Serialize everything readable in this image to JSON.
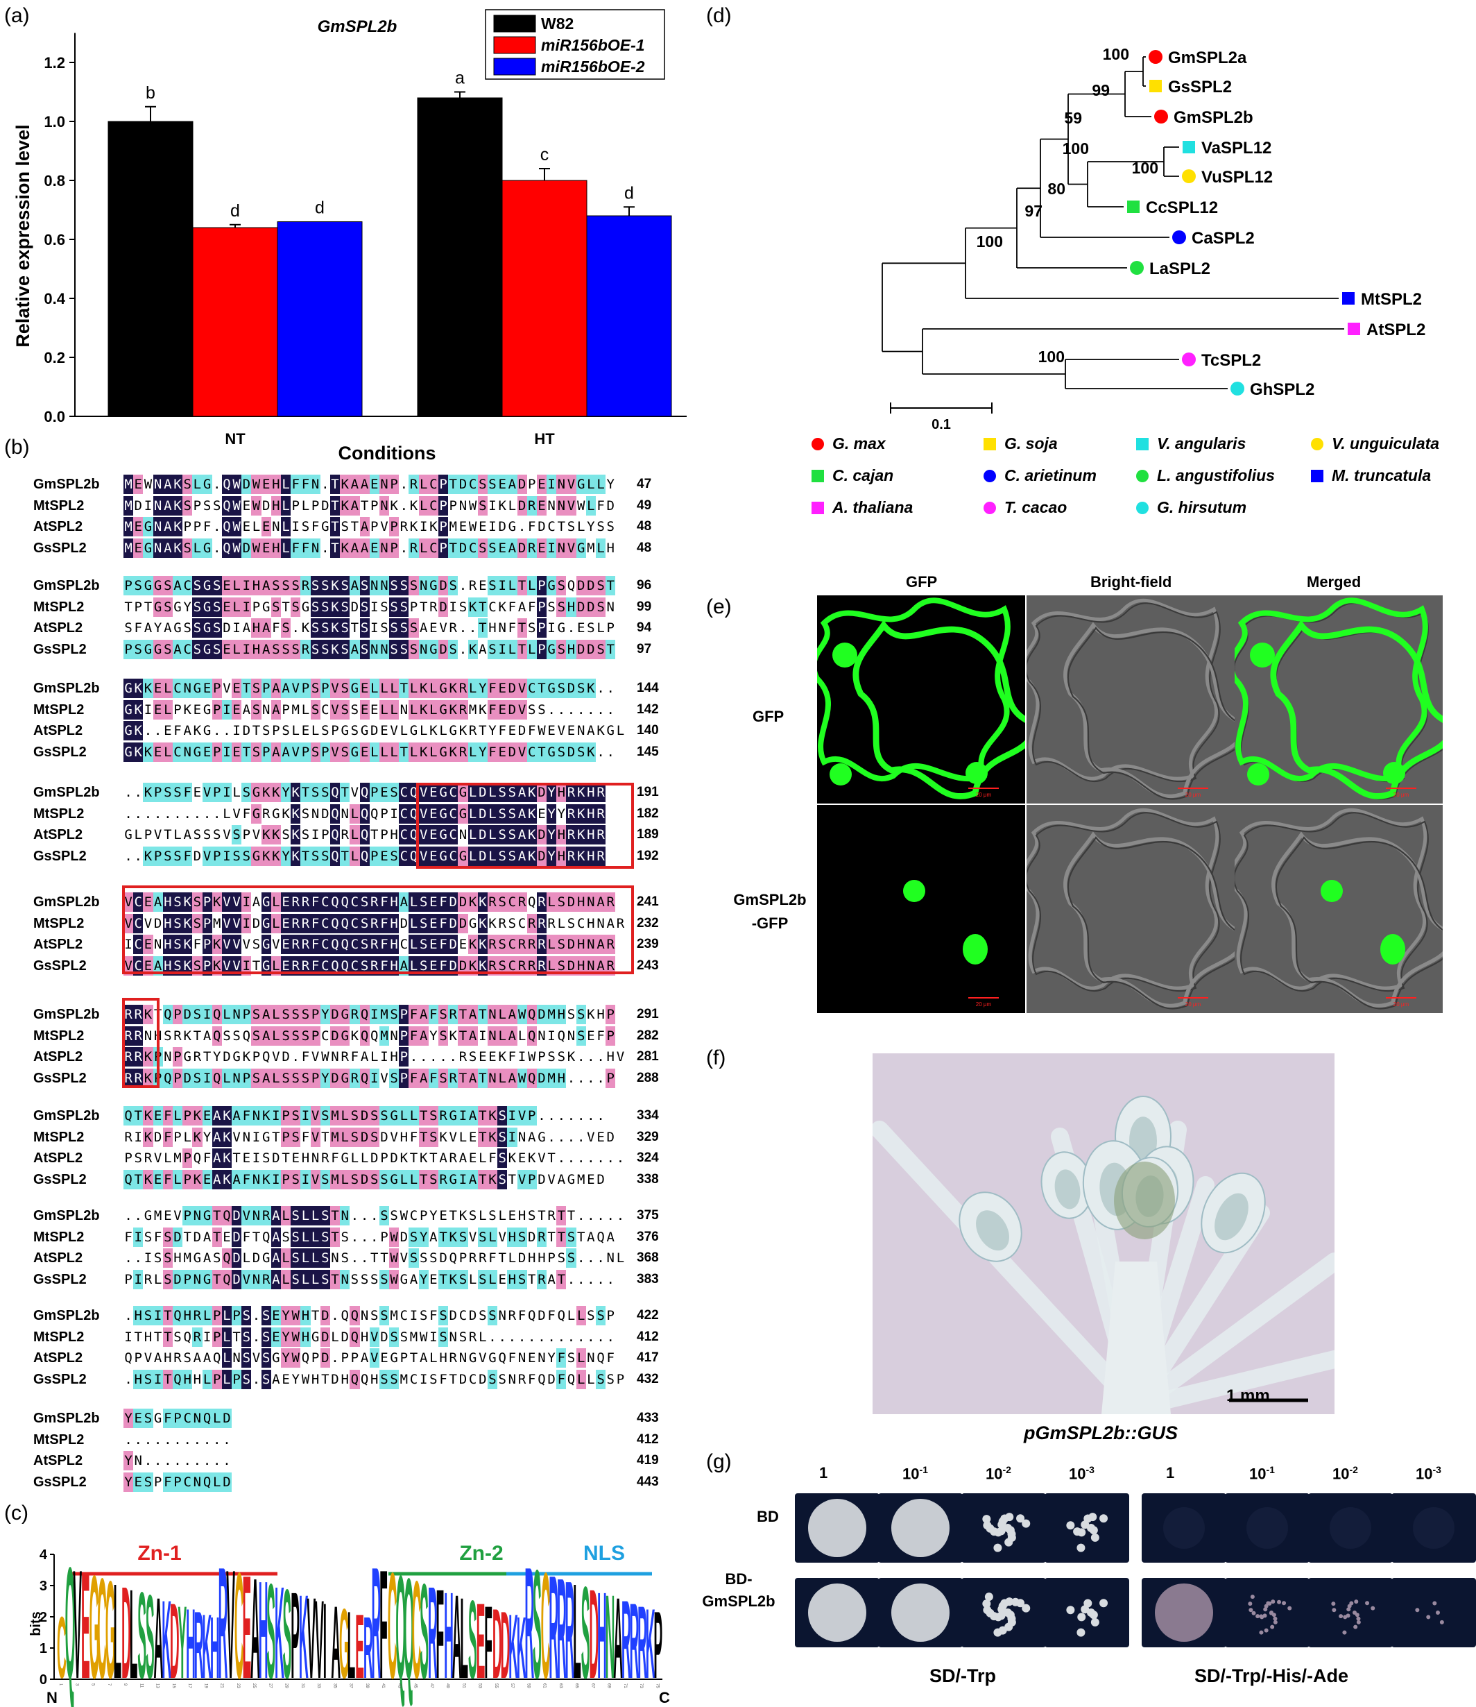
{
  "panel_labels": {
    "a": "(a)",
    "b": "(b)",
    "c": "(c)",
    "d": "(d)",
    "e": "(e)",
    "f": "(f)",
    "g": "(g)"
  },
  "panel_a": {
    "chart_data": {
      "type": "bar",
      "title": "GmSPL2b",
      "xlabel": "Conditions",
      "ylabel": "Relative expression level",
      "ylim": [
        0,
        1.3
      ],
      "yticks": [
        "0.0",
        "0.2",
        "0.4",
        "0.6",
        "0.8",
        "1.0",
        "1.2"
      ],
      "categories": [
        "NT",
        "HT"
      ],
      "legend_position": "top-right",
      "series": [
        {
          "name": "W82",
          "color": "#000000",
          "values": [
            1.0,
            1.08
          ],
          "errors": [
            0.05,
            0.02
          ],
          "letters": [
            "b",
            "a"
          ]
        },
        {
          "name": "miR156bOE-1",
          "color": "#ff0000",
          "values": [
            0.64,
            0.8
          ],
          "errors": [
            0.01,
            0.04
          ],
          "letters": [
            "d",
            "c"
          ]
        },
        {
          "name": "miR156bOE-2",
          "color": "#0000ff",
          "values": [
            0.66,
            0.68
          ],
          "errors": [
            0.0,
            0.03
          ],
          "letters": [
            "d",
            "d"
          ]
        }
      ]
    }
  },
  "panel_b": {
    "blocks": [
      {
        "rows": [
          {
            "name": "GmSPL2b",
            "seq": "MEWNAKSLG.QWDWEHLFFN.TKAAENP.RLCPTDCSSEADPEINVGLLY",
            "num": "47"
          },
          {
            "name": "MtSPL2",
            "seq": "MDINAKSPSSQWEWDHLPLPDTKATPNK.KLCPPNWSIKLDRENNVWLFD",
            "num": "49"
          },
          {
            "name": "AtSPL2",
            "seq": "MEGNAKPPF.QWELENLISFGTSTAPVPRKIKPMEWEIDG.FDCTSLYSS",
            "num": "48"
          },
          {
            "name": "GsSPL2",
            "seq": "MEGNAKSLG.QWDWEHLFFN.TKAAENP.RLCPTDCSSEADREINVGMLH",
            "num": "48"
          }
        ]
      },
      {
        "rows": [
          {
            "name": "GmSPL2b",
            "seq": "PSGGSACSGSELIHASSSRSSKSASNNSSSNGDS.RESILTLPGSQDDST",
            "num": "96"
          },
          {
            "name": "MtSPL2",
            "seq": "TPTGSGYSGSELIPGSTSGSSKSDSISSSPTRDISKTCKFAFPSSHDDSN",
            "num": "99"
          },
          {
            "name": "AtSPL2",
            "seq": "SFAYAGSSGSDIAHAFS.KSSKSTSISSSSAEVR..THNFTSPIG.ESLP",
            "num": "94"
          },
          {
            "name": "GsSPL2",
            "seq": "PSGGSACSGSELIHASSSRSSKSASNNSSSNGDS.KASILTLPGSHDDST",
            "num": "97"
          }
        ]
      },
      {
        "rows": [
          {
            "name": "GmSPL2b",
            "seq": "GKKELCNGEPVETSPAAVPSPVSGELLLTLKLGKRLYFEDVCTGSDSK..",
            "num": "144"
          },
          {
            "name": "MtSPL2",
            "seq": "GKIELPKEGPIEASNAPMLSCVSSEELLNLKLGKRMKFEDVSS.......",
            "num": "142"
          },
          {
            "name": "AtSPL2",
            "seq": "GK..EFAKG..IDTSPSLELSPGSGDEVLGLKLGKRTYFEDFWEVENAKGL",
            "num": "140"
          },
          {
            "name": "GsSPL2",
            "seq": "GKKELCNGEPIETSPAAVPSPVSGELLLTLKLGKRLYFEDVCTGSDSK..",
            "num": "145"
          }
        ]
      },
      {
        "rows": [
          {
            "name": "GmSPL2b",
            "seq": "..KPSSFEVPILSGKKYKTSSQTVQPESCQVEGCGLDLSSAKDYHRKHR",
            "num": "191"
          },
          {
            "name": "MtSPL2",
            "seq": "..........LVFGRGKKSNDQNLQQPICQVEGCGLDLSSAKEYYRKHR",
            "num": "182"
          },
          {
            "name": "AtSPL2",
            "seq": "GLPVTLASSSVSPVKKSKSIPQRLQTPHCQVEGCNLDLSSAKDYHRKHR",
            "num": "189"
          },
          {
            "name": "GsSPL2",
            "seq": "..KPSSFDVPISSGKKYKTSSQTLQPESCQVEGCGLDLSSAKDYHRKHR",
            "num": "192"
          }
        ]
      },
      {
        "rows": [
          {
            "name": "GmSPL2b",
            "seq": "VCEAHSKSPKVVIAGLERRFCQQCSRFHALSEFDDKKRSCRQRLSDHNAR",
            "num": "241"
          },
          {
            "name": "MtSPL2",
            "seq": "VCVDHSKSPMVVIDGLERRFCQQCSRFHDLSEFDDGKKRSCRRRLSCHNAR",
            "num": "232"
          },
          {
            "name": "AtSPL2",
            "seq": "ICENHSKFPKVVVSGVERRFCQQCSRFHCLSEFDEKKRSCRRRLSDHNAR",
            "num": "239"
          },
          {
            "name": "GsSPL2",
            "seq": "VCEAHSKSPKVVITGLERRFCQQCSRFHALSEFDDKKRSCRRRLSDHNAR",
            "num": "243"
          }
        ]
      },
      {
        "rows": [
          {
            "name": "GmSPL2b",
            "seq": "RRKTQPDSIQLNPSALSSSPYDGRQIMSPFAFSRTATNLAWQDMHSSKHP",
            "num": "291"
          },
          {
            "name": "MtSPL2",
            "seq": "RRNHSRKTAQSSQSALSSSPCDGKQQMNPFAYSKTAINLALQNIQNSEFP",
            "num": "282"
          },
          {
            "name": "AtSPL2",
            "seq": "RRKPNPGRTYDGKPQVD.FVWNRFALIHP.....RSEEKFIWPSSK...HV",
            "num": "281"
          },
          {
            "name": "GsSPL2",
            "seq": "RRKPQPDSIQLNPSALSSSPYDGRQIVSPFAFSRTATNLAWQDMH....P",
            "num": "288"
          }
        ]
      },
      {
        "rows": [
          {
            "name": "GmSPL2b",
            "seq": "QTKEFLPKEAKAFNKIPSIVSMLSDSSGLLTSRGIATKSIVP.......",
            "num": "334"
          },
          {
            "name": "MtSPL2",
            "seq": "RIKDFPLKYAKVNIGTPSFVTMLSDSDVHFTSKVLETKSINAG....VED",
            "num": "329"
          },
          {
            "name": "AtSPL2",
            "seq": "PSRVLMPQFAKTEISDTEHNRFGLLDPDKTKTARAELFSKEKVT.......",
            "num": "324"
          },
          {
            "name": "GsSPL2",
            "seq": "QTKEFLPKEAKAFNKIPSIVSMLSDSSGLLTSRGIATKSTVPDVAGMED",
            "num": "338"
          }
        ]
      },
      {
        "rows": [
          {
            "name": "GmSPL2b",
            "seq": "..GMEVPNGTQDVNRALSLLSTN...SSWCPYETKSLSLEHSTRTT.....",
            "num": "375"
          },
          {
            "name": "MtSPL2",
            "seq": "FISFSDTDATEDFTQASSLLSTS...PWDSYATKSVSLVHSDRTTSTAQA",
            "num": "376"
          },
          {
            "name": "AtSPL2",
            "seq": "..ISSHMGASQDLDGALSLLSNS..TTWVSSSDQPRRFTLDHHPSS...NL",
            "num": "368"
          },
          {
            "name": "GsSPL2",
            "seq": "PIRLSDPNGTQDVNRALSLLSTNSSSSWGAYETKSLSLEHSTRAT.....",
            "num": "383"
          }
        ]
      },
      {
        "rows": [
          {
            "name": "GmSPL2b",
            "seq": ".HSITQHRLPLPS.SEYWHTD.QQNSSMCISFSDCDSSNRFQDFQLLSSP",
            "num": "422"
          },
          {
            "name": "MtSPL2",
            "seq": "ITHTTSQRIPLTS.SEYWHGDLDQHVDSSMWISNSRL.............",
            "num": "412"
          },
          {
            "name": "AtSPL2",
            "seq": "QPVAHRSAAQLNSVSGYWQPD.PPAVEGPTALHRNGVGQFNENYFSLNQF",
            "num": "417"
          },
          {
            "name": "GsSPL2",
            "seq": ".HSITQHHLPLPS.SAEYWHTDHQQHSSMCISFTDCDSSNRFQDFQLLSSP",
            "num": "432"
          }
        ]
      },
      {
        "rows": [
          {
            "name": "GmSPL2b",
            "seq": "YESGFPCNQLD",
            "num": "433"
          },
          {
            "name": "MtSPL2",
            "seq": "...........",
            "num": "412"
          },
          {
            "name": "AtSPL2",
            "seq": "YN.........",
            "num": "419"
          },
          {
            "name": "GsSPL2",
            "seq": "YESPFPCNQLD",
            "num": "443"
          }
        ]
      }
    ]
  },
  "panel_c": {
    "ylabel": "bits",
    "yticks": [
      "0",
      "1",
      "2",
      "3",
      "4"
    ],
    "motifs": [
      {
        "label": "Zn-1",
        "color": "#e02020"
      },
      {
        "label": "Zn-2",
        "color": "#20a040"
      },
      {
        "label": "NLS",
        "color": "#1ea0e0"
      }
    ],
    "logo_text": "CQVEGCGLDLSSAKDYHRKHRVCEAHSKSPKVVIAGLERRFCQQCSRFHALSEFDDKKRSCRRRLSDHNARRRKP",
    "n_label": "N",
    "c_label": "C"
  },
  "panel_d": {
    "scale_label": "0.1",
    "taxa": [
      {
        "name": "GmSPL2a",
        "color": "#ff0000",
        "shape": "circle"
      },
      {
        "name": "GsSPL2",
        "color": "#ffe000",
        "shape": "square"
      },
      {
        "name": "GmSPL2b",
        "color": "#ff0000",
        "shape": "circle"
      },
      {
        "name": "VaSPL12",
        "color": "#20e0e0",
        "shape": "square"
      },
      {
        "name": "VuSPL12",
        "color": "#ffe000",
        "shape": "circle"
      },
      {
        "name": "CcSPL12",
        "color": "#20e040",
        "shape": "square"
      },
      {
        "name": "CaSPL2",
        "color": "#0000ff",
        "shape": "circle"
      },
      {
        "name": "LaSPL2",
        "color": "#20e040",
        "shape": "circle"
      },
      {
        "name": "MtSPL2",
        "color": "#0000ff",
        "shape": "square"
      },
      {
        "name": "AtSPL2",
        "color": "#ff20ff",
        "shape": "square"
      },
      {
        "name": "TcSPL2",
        "color": "#ff20ff",
        "shape": "circle"
      },
      {
        "name": "GhSPL2",
        "color": "#20e0e0",
        "shape": "circle"
      }
    ],
    "bootstraps": [
      "100",
      "99",
      "59",
      "100",
      "100",
      "80",
      "97",
      "100",
      "100"
    ],
    "legend": [
      {
        "label": "G. max",
        "color": "#ff0000",
        "shape": "circle"
      },
      {
        "label": "G. soja",
        "color": "#ffe000",
        "shape": "square"
      },
      {
        "label": "V. angularis",
        "color": "#20e0e0",
        "shape": "square"
      },
      {
        "label": "V. unguiculata",
        "color": "#ffe000",
        "shape": "circle"
      },
      {
        "label": "C. cajan",
        "color": "#20e040",
        "shape": "square"
      },
      {
        "label": "C. arietinum",
        "color": "#0000ff",
        "shape": "circle"
      },
      {
        "label": "L. angustifolius",
        "color": "#20e040",
        "shape": "circle"
      },
      {
        "label": "M. truncatula",
        "color": "#0000ff",
        "shape": "square"
      },
      {
        "label": "A. thaliana",
        "color": "#ff20ff",
        "shape": "square"
      },
      {
        "label": "T. cacao",
        "color": "#ff20ff",
        "shape": "circle"
      },
      {
        "label": "G. hirsutum",
        "color": "#20e0e0",
        "shape": "circle"
      }
    ]
  },
  "panel_e": {
    "col_headers": [
      "GFP",
      "Bright-field",
      "Merged"
    ],
    "row_labels": [
      "GFP",
      "GmSPL2b\n-GFP"
    ],
    "scale_text": "20 μm"
  },
  "panel_f": {
    "scale_label": "1 mm",
    "caption": "pGmSPL2b::GUS"
  },
  "panel_g": {
    "dilutions": [
      "1",
      "10",
      "10",
      "10"
    ],
    "exponents": [
      "",
      "-1",
      "-2",
      "-3"
    ],
    "row_labels": [
      "BD",
      "BD-\nGmSPL2b"
    ],
    "media": [
      "SD/-Trp",
      "SD/-Trp/-His/-Ade"
    ]
  }
}
